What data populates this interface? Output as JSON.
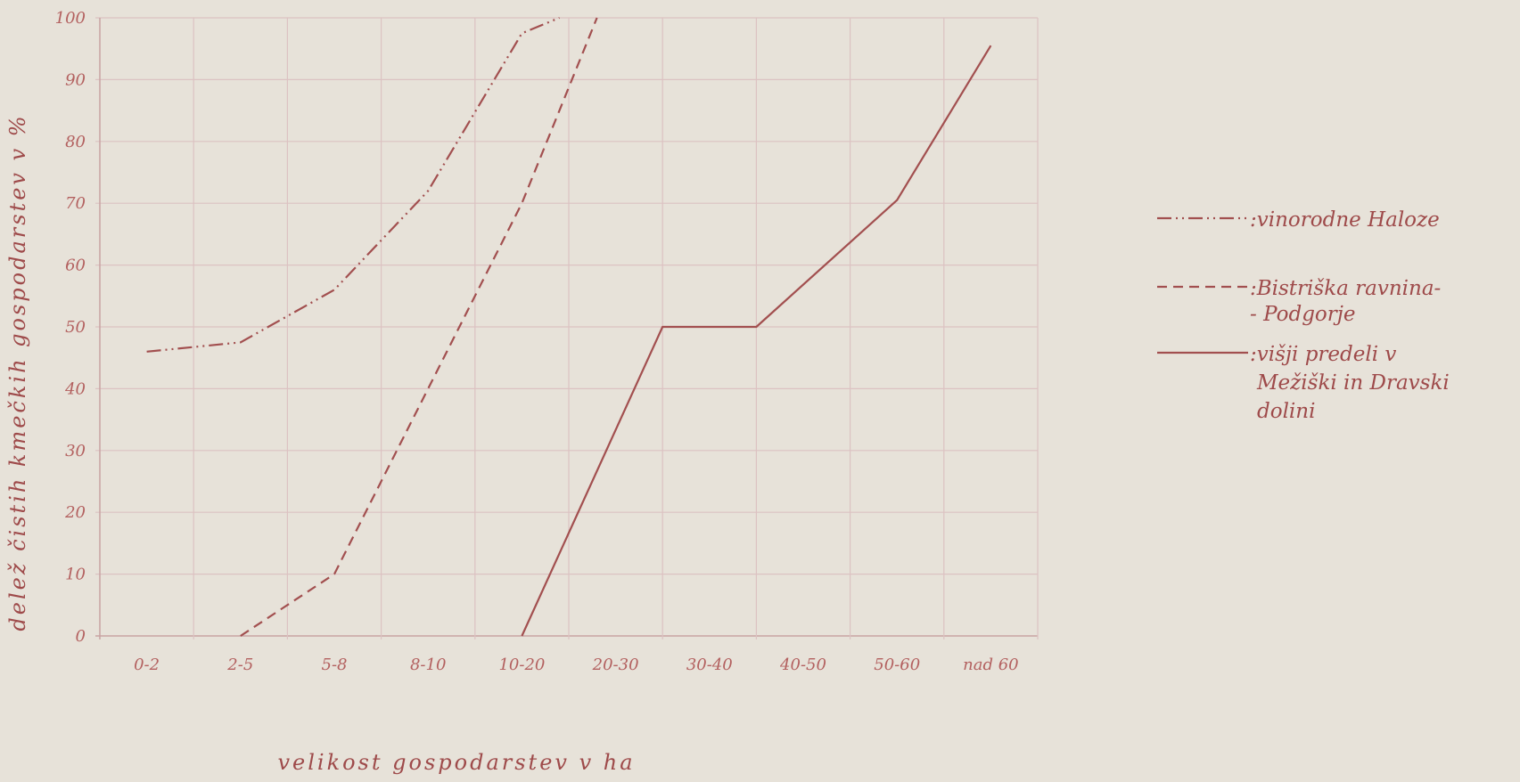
{
  "chart_data": {
    "type": "line",
    "categories": [
      "0 - 2",
      "2 - 5",
      "5 - 8",
      "8 - 10",
      "10 - 20",
      "20 - 30",
      "30 - 40",
      "40 - 50",
      "50 - 60",
      "nad 60"
    ],
    "x_ticks": [
      "0-2",
      "2-5",
      "5-8",
      "8-10",
      "10-20",
      "20-30",
      "30-40",
      "40-50",
      "50-60",
      "nad 60"
    ],
    "xlabel": "velikost gospodarstev v ha",
    "ylabel": "delež čistih kmečkih gospodarstev v %",
    "y_ticks": [
      0,
      10,
      20,
      30,
      40,
      50,
      60,
      70,
      80,
      90,
      100
    ],
    "ylim": [
      0,
      100
    ],
    "grid": true,
    "legend_position": "right",
    "series": [
      {
        "name": "vinorodne Haloze",
        "style": "dash-dot-dot",
        "points": [
          [
            0.0,
            46
          ],
          [
            1.0,
            47.5
          ],
          [
            2.0,
            56
          ],
          [
            3.0,
            72
          ],
          [
            4.0,
            97.5
          ],
          [
            4.4,
            100
          ]
        ]
      },
      {
        "name": "Bistriška ravnina - Podgorje",
        "style": "dashed",
        "points": [
          [
            1.0,
            0
          ],
          [
            2.0,
            10
          ],
          [
            3.0,
            40
          ],
          [
            4.0,
            70
          ],
          [
            4.8,
            100
          ]
        ]
      },
      {
        "name": "višji predeli v Mežiški in Dravski dolini",
        "style": "solid",
        "points": [
          [
            4.0,
            0
          ],
          [
            5.5,
            50
          ],
          [
            6.5,
            50
          ],
          [
            8.0,
            70.5
          ],
          [
            9.0,
            95.5
          ]
        ]
      }
    ],
    "colors": {
      "line": "#a24f4f",
      "grid": "#dcc2c2",
      "text": "#9e4a4a",
      "background": "#e7e2d9"
    }
  },
  "legend": {
    "items": [
      {
        "lines": [
          ":vinorodne Haloze"
        ]
      },
      {
        "lines": [
          ":Bistriška ravnina-",
          "- Podgorje"
        ]
      },
      {
        "lines": [
          ":višji predeli v",
          "Mežiški in Dravski",
          "dolini"
        ]
      }
    ]
  }
}
